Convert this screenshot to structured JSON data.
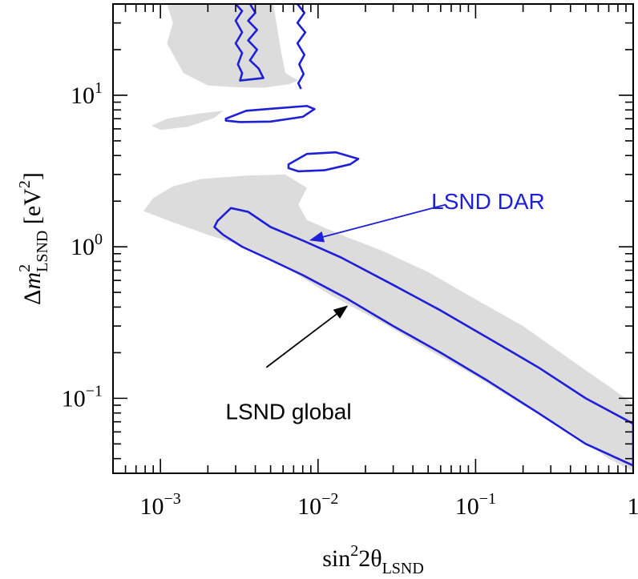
{
  "chart_data": {
    "type": "area",
    "title": "",
    "xlabel": "sin²2θLSND",
    "xlabel_parts": {
      "base": "sin",
      "sup": "2",
      "mid": "2θ",
      "sub": "LSND"
    },
    "ylabel": "Δm²LSND [eV²]",
    "ylabel_parts": {
      "pre": "Δ",
      "var": "m",
      "sup": "2",
      "sub": "LSND",
      "unit_pre": "[eV",
      "unit_sup": "2",
      "unit_post": "]"
    },
    "x_scale": "log",
    "y_scale": "log",
    "xlim": [
      0.0005,
      1
    ],
    "ylim": [
      0.032,
      40
    ],
    "x_ticks": [
      {
        "value": 0.001,
        "base": "10",
        "exp": "−3"
      },
      {
        "value": 0.01,
        "base": "10",
        "exp": "−2"
      },
      {
        "value": 0.1,
        "base": "10",
        "exp": "−1"
      },
      {
        "value": 1,
        "base": "1",
        "exp": ""
      }
    ],
    "y_ticks": [
      {
        "value": 0.1,
        "base": "10",
        "exp": "−1"
      },
      {
        "value": 1,
        "base": "10",
        "exp": "0"
      },
      {
        "value": 10,
        "base": "10",
        "exp": "1"
      }
    ],
    "grid": false,
    "colors": {
      "global": "#dcdcdc",
      "dar": "#1f1fd6",
      "frame": "#000000",
      "global_label": "#000000"
    },
    "series": [
      {
        "name": "LSND global",
        "style": "filled",
        "regions": [
          [
            [
              0.00078,
              1.72
            ],
            [
              0.0009,
              2.1
            ],
            [
              0.0012,
              2.5
            ],
            [
              0.0018,
              2.8
            ],
            [
              0.0035,
              2.95
            ],
            [
              0.0062,
              3.0
            ],
            [
              0.0085,
              2.45
            ],
            [
              0.0075,
              1.9
            ],
            [
              0.0085,
              1.5
            ],
            [
              0.014,
              1.2
            ],
            [
              0.025,
              0.95
            ],
            [
              0.05,
              0.68
            ],
            [
              0.1,
              0.45
            ],
            [
              0.2,
              0.3
            ],
            [
              0.4,
              0.18
            ],
            [
              0.7,
              0.12
            ],
            [
              1.0,
              0.092
            ],
            [
              1.0,
              0.033
            ],
            [
              0.7,
              0.04
            ],
            [
              0.4,
              0.06
            ],
            [
              0.2,
              0.09
            ],
            [
              0.1,
              0.14
            ],
            [
              0.05,
              0.21
            ],
            [
              0.025,
              0.32
            ],
            [
              0.012,
              0.48
            ],
            [
              0.006,
              0.75
            ],
            [
              0.0035,
              1.0
            ],
            [
              0.002,
              1.2
            ],
            [
              0.0012,
              1.45
            ]
          ],
          [
            [
              0.00088,
              6.3
            ],
            [
              0.0011,
              7.0
            ],
            [
              0.0018,
              7.6
            ],
            [
              0.0025,
              7.9
            ],
            [
              0.0022,
              7.1
            ],
            [
              0.0015,
              6.2
            ],
            [
              0.001,
              5.9
            ]
          ],
          [
            [
              0.0011,
              40
            ],
            [
              0.0012,
              30
            ],
            [
              0.0011,
              22
            ],
            [
              0.0014,
              14
            ],
            [
              0.002,
              11.6
            ],
            [
              0.003,
              11.3
            ],
            [
              0.0045,
              11.2
            ],
            [
              0.0065,
              11.8
            ],
            [
              0.0075,
              12.5
            ],
            [
              0.0062,
              14
            ],
            [
              0.0058,
              20
            ],
            [
              0.0055,
              28
            ],
            [
              0.0052,
              40
            ]
          ]
        ]
      },
      {
        "name": "LSND DAR",
        "style": "contour",
        "regions": [
          [
            [
              0.0023,
              1.48
            ],
            [
              0.0028,
              1.8
            ],
            [
              0.0036,
              1.7
            ],
            [
              0.005,
              1.35
            ],
            [
              0.008,
              1.1
            ],
            [
              0.014,
              0.85
            ],
            [
              0.03,
              0.56
            ],
            [
              0.06,
              0.38
            ],
            [
              0.12,
              0.25
            ],
            [
              0.25,
              0.16
            ],
            [
              0.5,
              0.1
            ],
            [
              1.0,
              0.068
            ],
            [
              1.0,
              0.036
            ],
            [
              0.5,
              0.05
            ],
            [
              0.25,
              0.08
            ],
            [
              0.12,
              0.13
            ],
            [
              0.06,
              0.2
            ],
            [
              0.03,
              0.3
            ],
            [
              0.015,
              0.46
            ],
            [
              0.008,
              0.65
            ],
            [
              0.005,
              0.82
            ],
            [
              0.0033,
              1.0
            ],
            [
              0.0025,
              1.2
            ],
            [
              0.0022,
              1.35
            ]
          ],
          [
            [
              0.0026,
              7.0
            ],
            [
              0.0035,
              7.9
            ],
            [
              0.0055,
              8.2
            ],
            [
              0.0085,
              8.5
            ],
            [
              0.0095,
              8.1
            ],
            [
              0.008,
              7.2
            ],
            [
              0.005,
              6.7
            ],
            [
              0.0032,
              6.65
            ],
            [
              0.0026,
              6.8
            ]
          ],
          [
            [
              0.0065,
              3.5
            ],
            [
              0.0085,
              4.1
            ],
            [
              0.013,
              4.2
            ],
            [
              0.018,
              3.8
            ],
            [
              0.016,
              3.5
            ],
            [
              0.011,
              3.2
            ],
            [
              0.0075,
              3.15
            ],
            [
              0.0065,
              3.3
            ]
          ]
        ],
        "open_paths": [
          [
            [
              0.0037,
              40
            ],
            [
              0.004,
              35
            ],
            [
              0.0036,
              31
            ],
            [
              0.0041,
              27
            ],
            [
              0.0036,
              23
            ],
            [
              0.0041,
              20
            ],
            [
              0.0037,
              17
            ],
            [
              0.0042,
              15
            ],
            [
              0.0045,
              13
            ],
            [
              0.0032,
              12.5
            ],
            [
              0.0033,
              14
            ],
            [
              0.0031,
              16
            ],
            [
              0.0033,
              19
            ],
            [
              0.003,
              22
            ],
            [
              0.0033,
              26
            ],
            [
              0.003,
              31
            ],
            [
              0.0033,
              36
            ],
            [
              0.003,
              40
            ]
          ],
          [
            [
              0.0074,
              40
            ],
            [
              0.0082,
              35
            ],
            [
              0.0074,
              30
            ],
            [
              0.0083,
              26
            ],
            [
              0.0074,
              22
            ],
            [
              0.0082,
              18.5
            ],
            [
              0.0076,
              16
            ],
            [
              0.0081,
              13.8
            ],
            [
              0.0075,
              12
            ],
            [
              0.0078,
              11
            ]
          ]
        ]
      }
    ],
    "annotations": [
      {
        "text": "LSND DAR",
        "color": "#1f1fd6",
        "text_at": [
          0.12,
          2.0
        ],
        "arrow_from": [
          0.065,
          1.9
        ],
        "arrow_to": [
          0.0088,
          1.1
        ]
      },
      {
        "text": "LSND global",
        "color": "#000000",
        "text_at": [
          0.0065,
          0.082
        ],
        "arrow_from": [
          0.0047,
          0.16
        ],
        "arrow_to": [
          0.0155,
          0.41
        ]
      }
    ]
  }
}
